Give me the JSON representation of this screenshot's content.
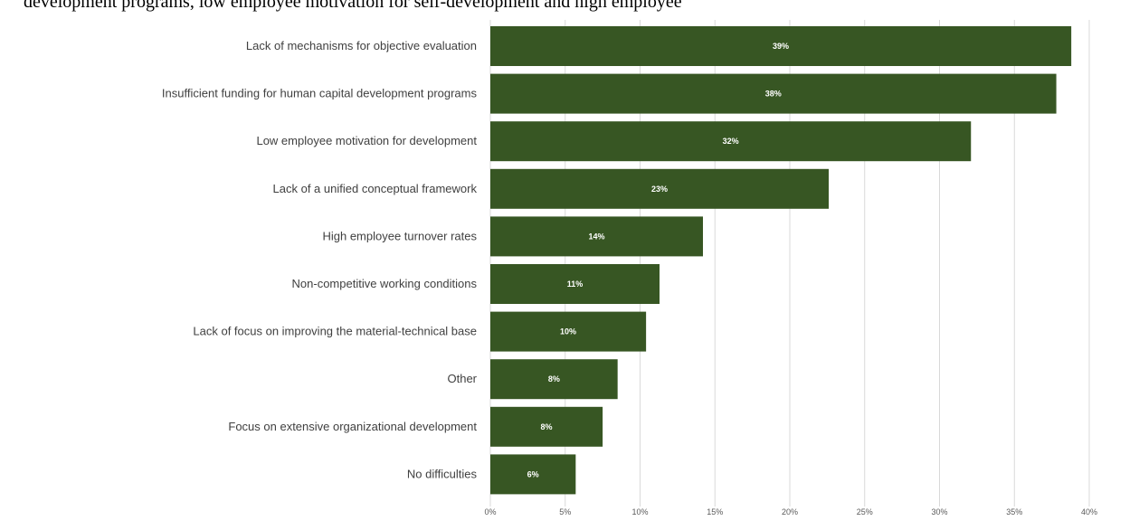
{
  "header_text": "development programs, low employee motivation for self-development and high employee",
  "chart_data": {
    "type": "bar",
    "orientation": "horizontal",
    "categories": [
      "Lack of mechanisms for objective evaluation",
      "Insufficient funding for human capital development programs",
      "Low employee motivation for development",
      "Lack of a unified conceptual framework",
      "High employee turnover rates",
      "Non-competitive working conditions",
      "Lack of focus on improving the material-technical base",
      "Other",
      "Focus on extensive organizational development",
      "No difficulties"
    ],
    "values": [
      38.8,
      37.8,
      32.1,
      22.6,
      14.2,
      11.3,
      10.4,
      8.5,
      7.5,
      5.7
    ],
    "data_labels": [
      "39%",
      "38%",
      "32%",
      "23%",
      "14%",
      "11%",
      "10%",
      "8%",
      "8%",
      "6%"
    ],
    "x_ticks": [
      0,
      5,
      10,
      15,
      20,
      25,
      30,
      35,
      40
    ],
    "x_tick_labels": [
      "0%",
      "5%",
      "10%",
      "15%",
      "20%",
      "25%",
      "30%",
      "35%",
      "40%"
    ],
    "xlim": [
      0,
      40
    ],
    "grid": true,
    "legend": "none",
    "bar_color": "#375623",
    "label_color": "#ffffff",
    "grid_color": "#d9d9d9"
  }
}
